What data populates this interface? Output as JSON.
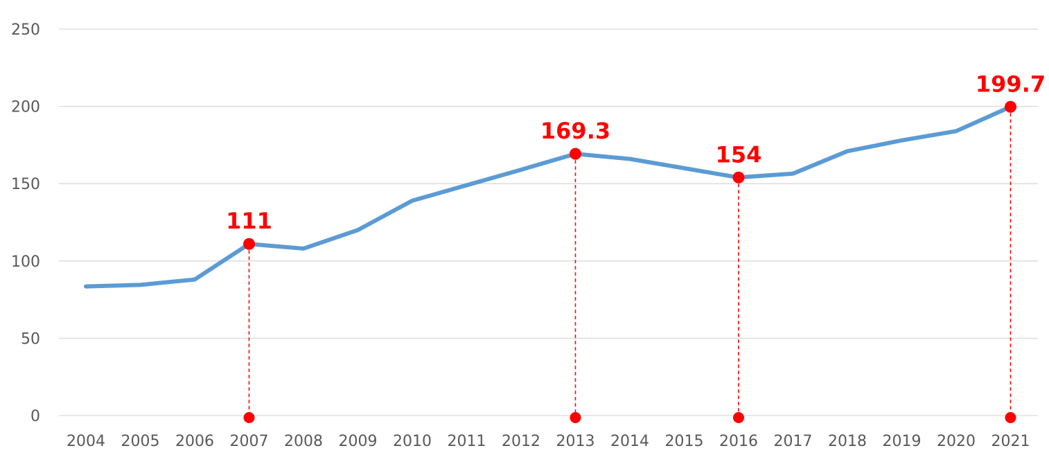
{
  "chart_data": {
    "type": "line",
    "categories": [
      "2004",
      "2005",
      "2006",
      "2007",
      "2008",
      "2009",
      "2010",
      "2011",
      "2012",
      "2013",
      "2014",
      "2015",
      "2016",
      "2017",
      "2018",
      "2019",
      "2020",
      "2021"
    ],
    "series": [
      {
        "values": [
          83.5,
          84.5,
          88,
          111,
          108,
          120,
          139,
          149,
          159,
          169.3,
          166,
          160,
          154,
          156.5,
          171,
          178,
          184,
          199.7
        ]
      }
    ],
    "ylim": [
      0,
      250
    ],
    "yticks": [
      0,
      50,
      100,
      150,
      200,
      250
    ],
    "grid": true,
    "title": "",
    "xlabel": "",
    "ylabel": "",
    "annotations": [
      {
        "category": "2007",
        "value": 111,
        "label": "111"
      },
      {
        "category": "2013",
        "value": 169.3,
        "label": "169.3"
      },
      {
        "category": "2016",
        "value": 154,
        "label": "154"
      },
      {
        "category": "2021",
        "value": 199.7,
        "label": "199.7"
      }
    ],
    "colors": {
      "line": "#5b9bd5",
      "highlight": "#ff0000",
      "grid": "#d9d9d9",
      "text": "#595959"
    }
  }
}
